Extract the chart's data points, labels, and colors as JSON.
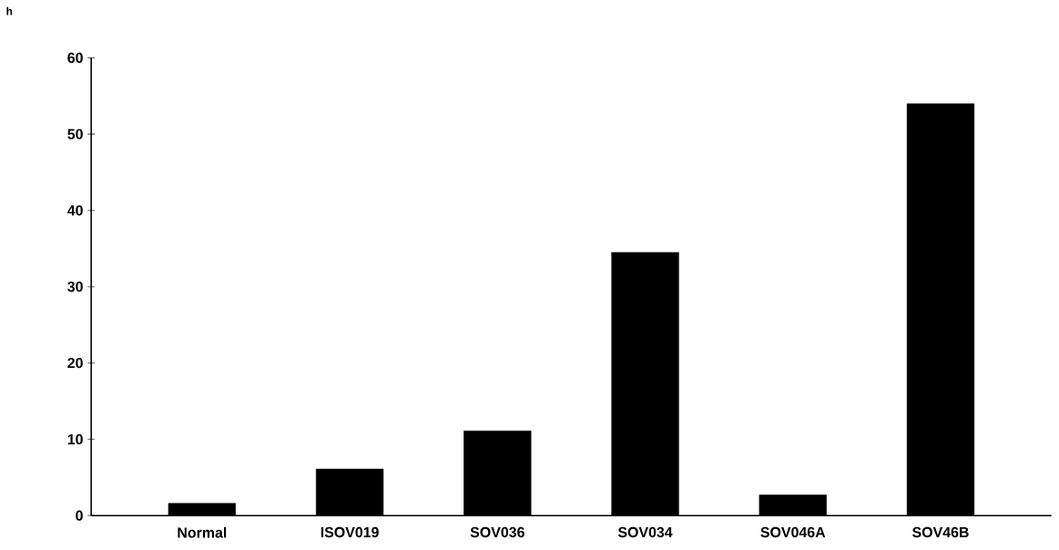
{
  "chart_data": {
    "type": "bar",
    "categories": [
      "Normal",
      "ISOV019",
      "SOV036",
      "SOV034",
      "SOV046A",
      "SOV46B"
    ],
    "values": [
      1.6,
      6.1,
      11.1,
      34.5,
      2.7,
      54
    ],
    "color": "#000000",
    "ylim": [
      0,
      60
    ],
    "yticks": [
      0,
      10,
      20,
      30,
      40,
      50,
      60
    ],
    "annotations": [
      "h"
    ]
  }
}
